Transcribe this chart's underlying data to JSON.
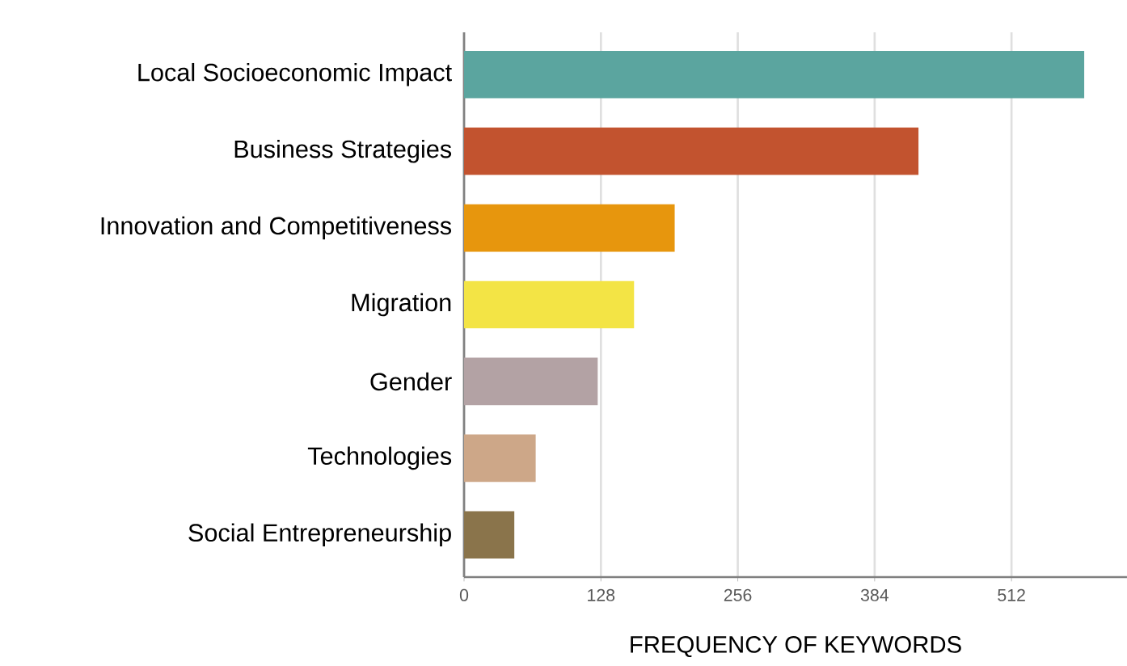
{
  "chart_data": {
    "type": "bar",
    "orientation": "horizontal",
    "xlabel": "FREQUENCY OF KEYWORDS",
    "categories": [
      "Local Socioeconomic Impact",
      "Business Strategies",
      "Innovation and Competitiveness",
      "Migration",
      "Gender",
      "Technologies",
      "Social Entrepreneurship"
    ],
    "values": [
      580,
      425,
      197,
      159,
      125,
      67,
      47
    ],
    "colors": [
      "#5ba59f",
      "#c2532f",
      "#e7960d",
      "#f3e445",
      "#b3a2a4",
      "#cda788",
      "#8a744b"
    ],
    "xlim": [
      0,
      620
    ],
    "xticks": [
      0,
      128,
      256,
      384,
      512
    ],
    "grid": "x"
  }
}
